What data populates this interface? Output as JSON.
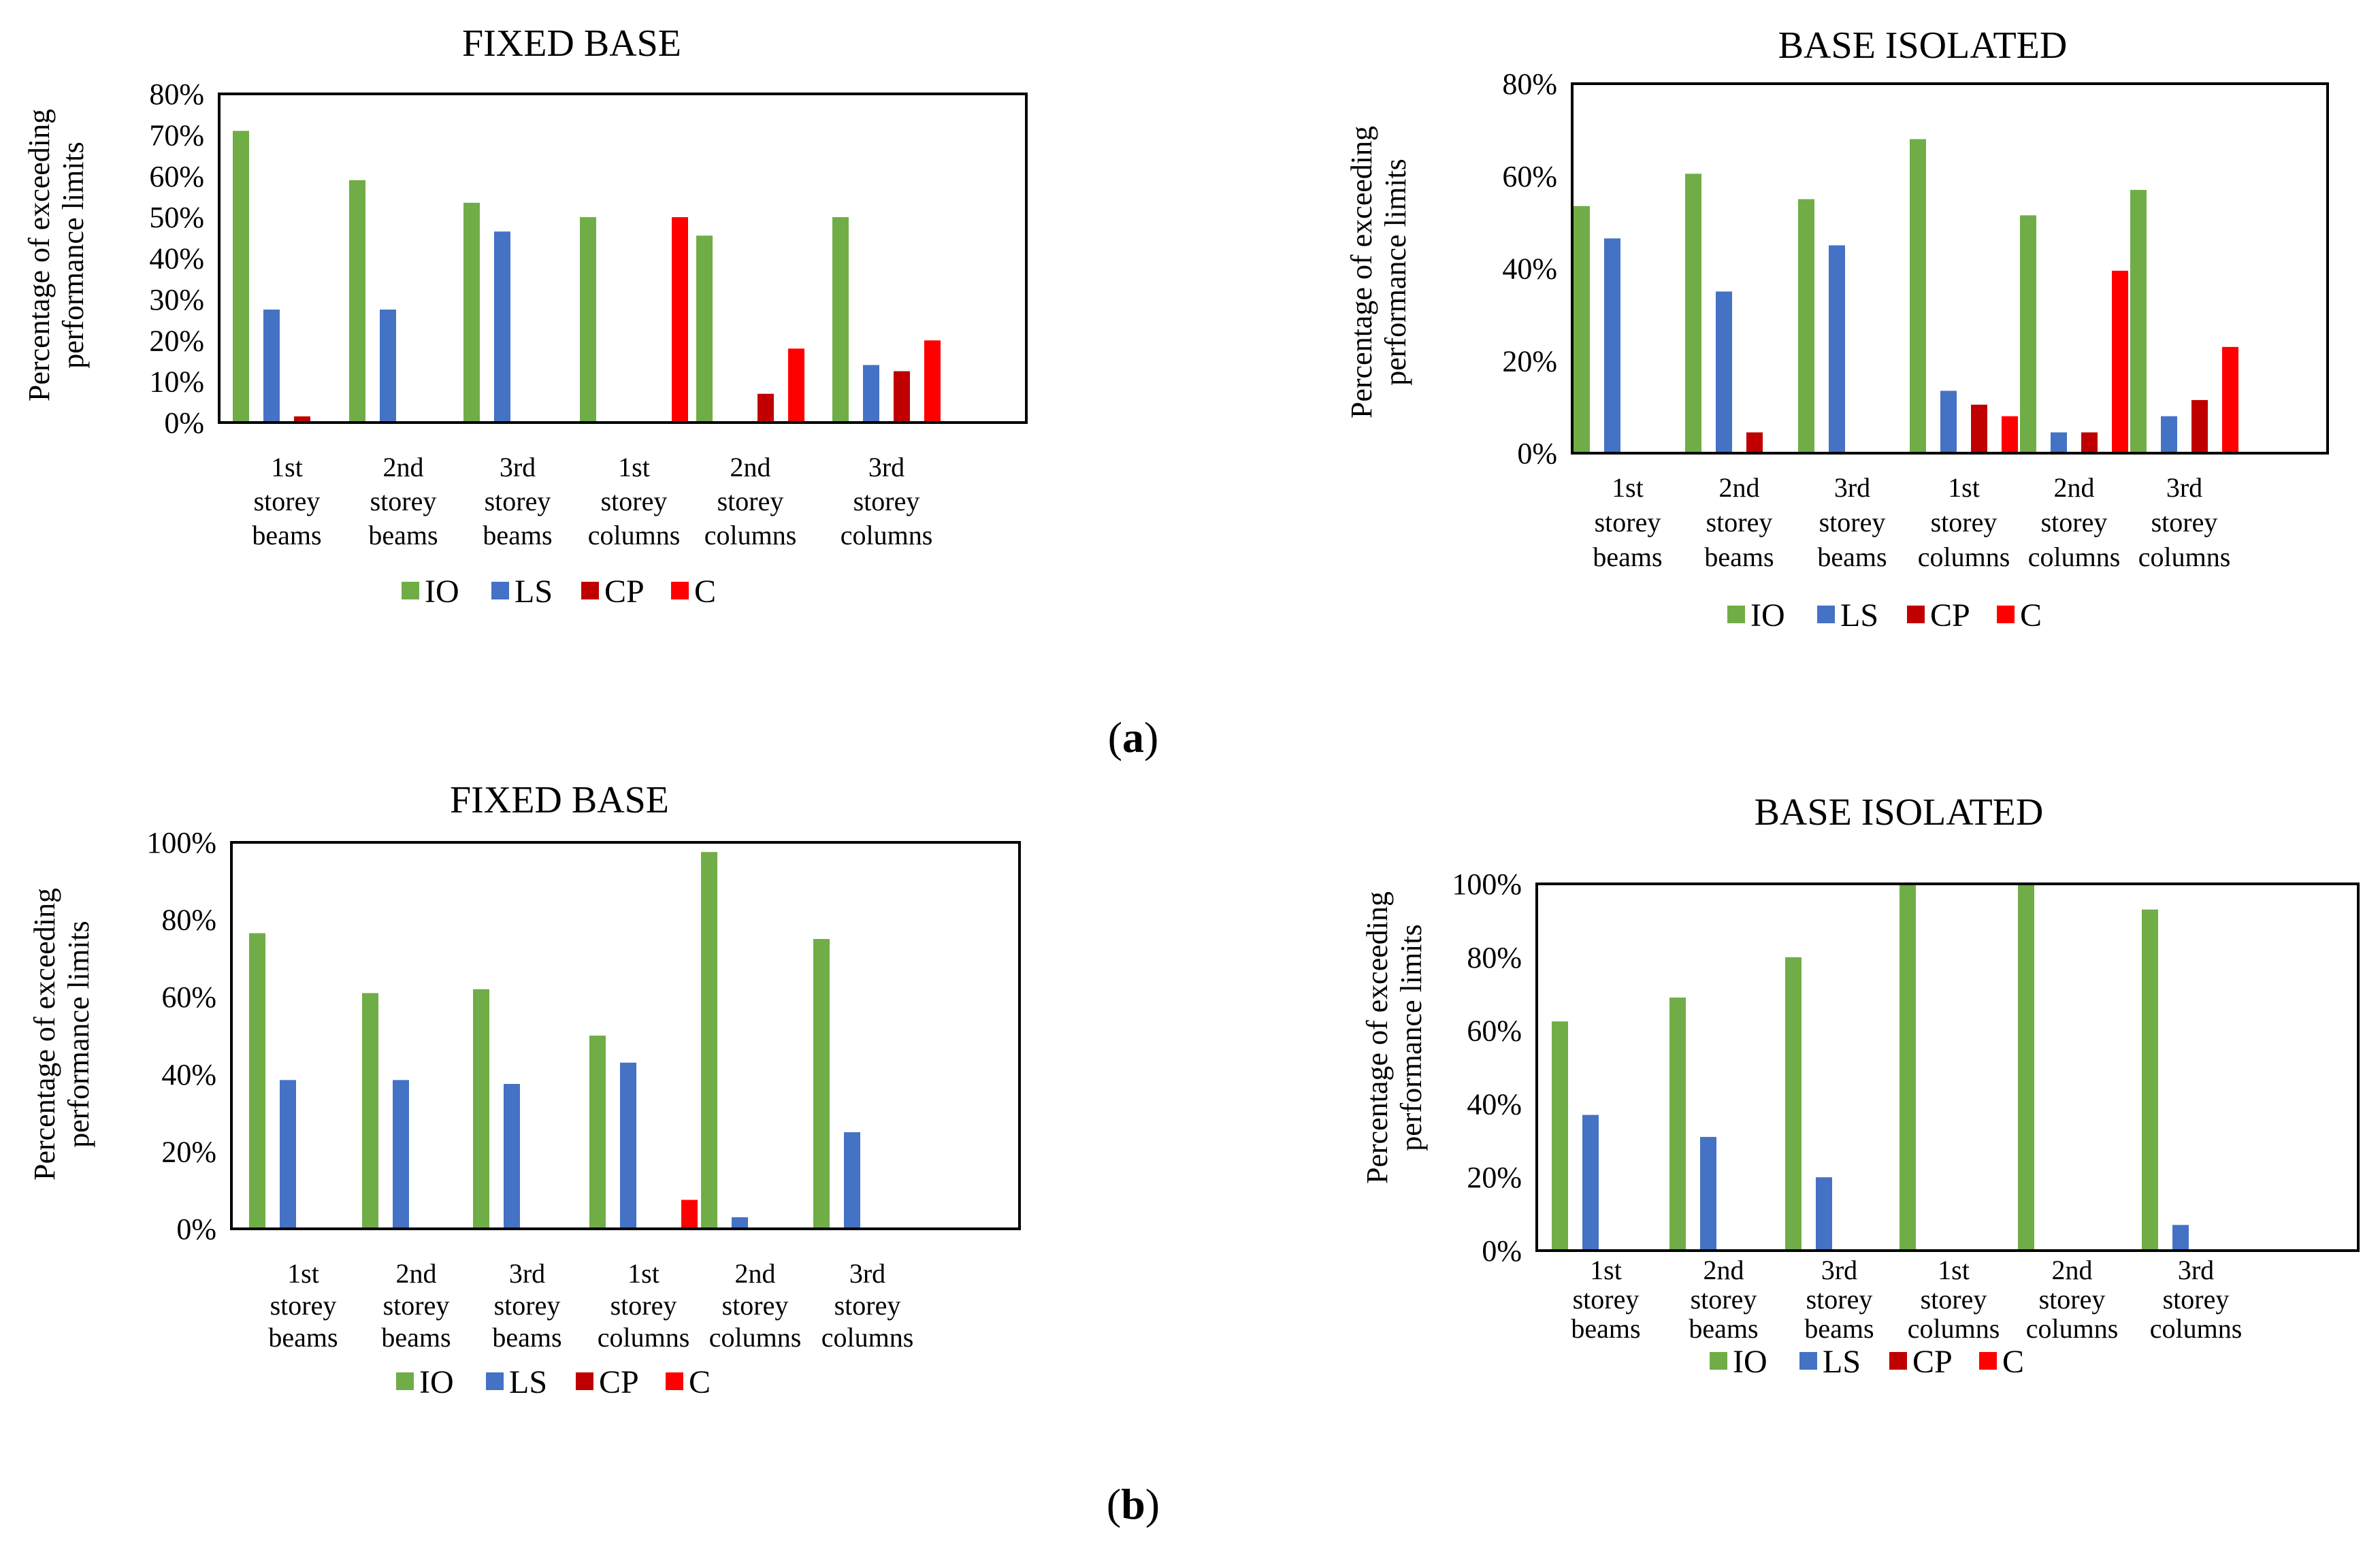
{
  "chart_data": [
    {
      "type": "bar",
      "title": "FIXED BASE",
      "ylabel": "Percentage of exceeding performance limits",
      "xlabel": "",
      "ylim": [
        0,
        80
      ],
      "yticks": [
        "0%",
        "10%",
        "20%",
        "30%",
        "40%",
        "50%",
        "60%",
        "70%",
        "80%"
      ],
      "categories": [
        "1st storey beams",
        "2nd storey beams",
        "3rd storey beams",
        "1st storey columns",
        "2nd storey columns",
        "3rd storey columns"
      ],
      "series": [
        {
          "name": "IO",
          "values": [
            71,
            59,
            53.5,
            50,
            45.5,
            50
          ]
        },
        {
          "name": "LS",
          "values": [
            27.5,
            27.5,
            46.5,
            0,
            0,
            14
          ]
        },
        {
          "name": "CP",
          "values": [
            1.5,
            0,
            0,
            0,
            7,
            12.5
          ]
        },
        {
          "name": "C",
          "values": [
            0,
            0,
            0,
            50,
            18,
            20
          ]
        }
      ]
    },
    {
      "type": "bar",
      "title": "BASE ISOLATED",
      "ylabel": "Percentage of exceeding performance limits",
      "xlabel": "",
      "ylim": [
        0,
        80
      ],
      "yticks": [
        "0%",
        "20%",
        "40%",
        "60%",
        "80%"
      ],
      "categories": [
        "1st storey beams",
        "2nd storey beams",
        "3rd storey beams",
        "1st storey columns",
        "2nd storey columns",
        "3rd storey columns"
      ],
      "series": [
        {
          "name": "IO",
          "values": [
            53.5,
            60.5,
            55,
            68,
            51.5,
            57
          ]
        },
        {
          "name": "LS",
          "values": [
            46.5,
            35,
            45,
            13.5,
            4.5,
            8
          ]
        },
        {
          "name": "CP",
          "values": [
            0,
            4.5,
            0,
            10.5,
            4.5,
            11.5
          ]
        },
        {
          "name": "C",
          "values": [
            0,
            0,
            0,
            8,
            39.5,
            23
          ]
        }
      ]
    },
    {
      "type": "bar",
      "title": "FIXED BASE",
      "ylabel": "Percentage of exceeding performance limits",
      "xlabel": "",
      "ylim": [
        0,
        100
      ],
      "yticks": [
        "0%",
        "20%",
        "40%",
        "60%",
        "80%",
        "100%"
      ],
      "categories": [
        "1st storey beams",
        "2nd storey beams",
        "3rd storey beams",
        "1st storey columns",
        "2nd storey columns",
        "3rd storey columns"
      ],
      "series": [
        {
          "name": "IO",
          "values": [
            76.5,
            61,
            62,
            50,
            97.5,
            75
          ]
        },
        {
          "name": "LS",
          "values": [
            38.5,
            38.5,
            37.5,
            43,
            3,
            25
          ]
        },
        {
          "name": "CP",
          "values": [
            0,
            0,
            0,
            0,
            0,
            0
          ]
        },
        {
          "name": "C",
          "values": [
            0,
            0,
            0,
            7.5,
            0,
            0
          ]
        }
      ]
    },
    {
      "type": "bar",
      "title": "BASE ISOLATED",
      "ylabel": "Percentage of exceeding performance limits",
      "xlabel": "",
      "ylim": [
        0,
        100
      ],
      "yticks": [
        "0%",
        "20%",
        "40%",
        "60%",
        "80%",
        "100%"
      ],
      "categories": [
        "1st storey beams",
        "2nd storey beams",
        "3rd storey beams",
        "1st storey columns",
        "2nd storey columns",
        "3rd storey columns"
      ],
      "series": [
        {
          "name": "IO",
          "values": [
            62.5,
            69,
            80,
            100,
            100,
            93
          ]
        },
        {
          "name": "LS",
          "values": [
            37,
            31,
            20,
            0,
            0,
            7
          ]
        },
        {
          "name": "CP",
          "values": [
            0,
            0,
            0,
            0,
            0,
            0
          ]
        },
        {
          "name": "C",
          "values": [
            0,
            0,
            0,
            0,
            0,
            0
          ]
        }
      ]
    }
  ],
  "legend": [
    "IO",
    "LS",
    "CP",
    "C"
  ],
  "colors": {
    "IO": "#70AD47",
    "LS": "#4472C4",
    "CP": "#C00000",
    "C": "#FF0000"
  },
  "panels": {
    "a": "a",
    "b": "b"
  }
}
